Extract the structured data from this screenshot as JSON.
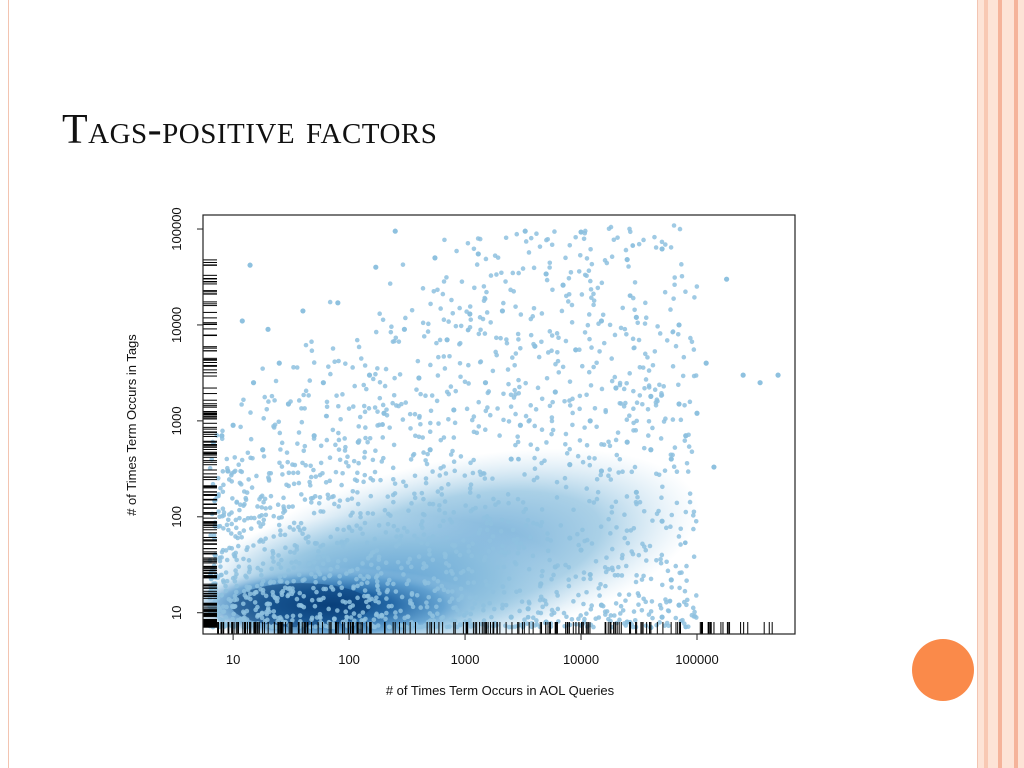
{
  "slide": {
    "title": "Tags-positive factors",
    "colors": {
      "accent": "#fa8a4a",
      "border": "#f3c4b1",
      "stripe_light": "#fde3d6",
      "stripe_dark": "#f5b39a"
    }
  },
  "chart_data": {
    "type": "scatter",
    "xscale": "log",
    "yscale": "log",
    "title": "",
    "xlabel": "# of Times Term Occurs in AOL Queries",
    "ylabel": "# of Times Term Occurs in Tags",
    "xlim": [
      5.5,
      700000
    ],
    "ylim": [
      6,
      140000
    ],
    "x_ticks": [
      10,
      100,
      1000,
      10000,
      100000
    ],
    "x_tick_labels": [
      "10",
      "100",
      "1000",
      "10000",
      "100000"
    ],
    "y_ticks": [
      10,
      100,
      1000,
      10000,
      100000
    ],
    "y_tick_labels": [
      "10",
      "100",
      "1000",
      "10000",
      "100000"
    ],
    "rug_plots": true,
    "density_shading": true,
    "point_color": "#8ec1df",
    "density_color": "#0a3f7a",
    "density_core": {
      "x": 70,
      "y": 12
    },
    "points": [
      [
        250,
        95000
      ],
      [
        3300,
        95000
      ],
      [
        10000,
        93000
      ],
      [
        1300,
        55000
      ],
      [
        550,
        50000
      ],
      [
        25000,
        48000
      ],
      [
        50000,
        62000
      ],
      [
        180000,
        30000
      ],
      [
        14,
        42000
      ],
      [
        170,
        40000
      ],
      [
        5000,
        34000
      ],
      [
        7000,
        26000
      ],
      [
        40,
        14000
      ],
      [
        80,
        17000
      ],
      [
        1100,
        13000
      ],
      [
        2100,
        14000
      ],
      [
        15000,
        11000
      ],
      [
        30000,
        12000
      ],
      [
        70000,
        10000
      ],
      [
        250000,
        3000
      ],
      [
        350000,
        2500
      ],
      [
        500000,
        3000
      ],
      [
        120000,
        4000
      ],
      [
        20,
        9000
      ],
      [
        12,
        11000
      ],
      [
        300,
        9000
      ],
      [
        700,
        7000
      ],
      [
        4000,
        6000
      ],
      [
        9000,
        5500
      ],
      [
        15,
        2500
      ],
      [
        25,
        4000
      ],
      [
        60,
        2500
      ],
      [
        150,
        3000
      ],
      [
        400,
        2800
      ],
      [
        1500,
        2500
      ],
      [
        6000,
        2000
      ],
      [
        20000,
        2200
      ],
      [
        40000,
        1800
      ],
      [
        70000,
        1500
      ],
      [
        100000,
        1200
      ],
      [
        8,
        700
      ],
      [
        10,
        900
      ],
      [
        30,
        1500
      ],
      [
        200,
        1200
      ],
      [
        800,
        1300
      ],
      [
        3000,
        900
      ],
      [
        12000,
        1000
      ],
      [
        25000,
        600
      ],
      [
        40000,
        500
      ],
      [
        60000,
        400
      ],
      [
        80000,
        700
      ],
      [
        140000,
        330
      ],
      [
        9,
        300
      ],
      [
        18,
        500
      ],
      [
        50,
        700
      ],
      [
        120,
        600
      ],
      [
        500,
        500
      ],
      [
        2500,
        400
      ],
      [
        8000,
        350
      ],
      [
        15000,
        300
      ],
      [
        30000,
        180
      ],
      [
        50000,
        90
      ],
      [
        8000,
        60
      ],
      [
        10000,
        45
      ],
      [
        6000,
        30
      ],
      [
        4500,
        20
      ],
      [
        12000,
        25
      ],
      [
        15000,
        12
      ],
      [
        60000,
        22
      ],
      [
        70000,
        12
      ],
      [
        50000,
        9
      ],
      [
        40000,
        7
      ],
      [
        25000,
        8
      ],
      [
        5000,
        8
      ],
      [
        3500,
        11
      ],
      [
        2500,
        9
      ],
      [
        7,
        80
      ],
      [
        7,
        40
      ],
      [
        7,
        20
      ],
      [
        7,
        150
      ]
    ]
  }
}
